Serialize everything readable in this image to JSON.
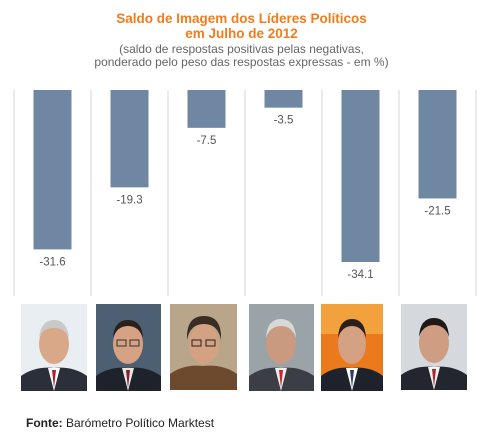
{
  "chart_data": {
    "type": "bar",
    "title": "Saldo de Imagem dos Líderes Políticos",
    "title_line2": "em Julho de 2012",
    "subtitle_line1": "(saldo de respostas positivas pelas negativas,",
    "subtitle_line2": "ponderado pelo peso das respostas expressas - em %)",
    "values": [
      -31.6,
      -19.3,
      -7.5,
      -3.5,
      -34.1,
      -21.5
    ],
    "value_labels": [
      "-31.6",
      "-19.3",
      "-7.5",
      "-3.5",
      "-34.1",
      "-21.5"
    ],
    "ylim": [
      -40,
      0
    ],
    "grid": true,
    "bar_color": "#6f87a3",
    "title_color": "#f07c1c"
  },
  "footer": {
    "label": "Fonte:",
    "source": "Barómetro Político Marktest"
  }
}
